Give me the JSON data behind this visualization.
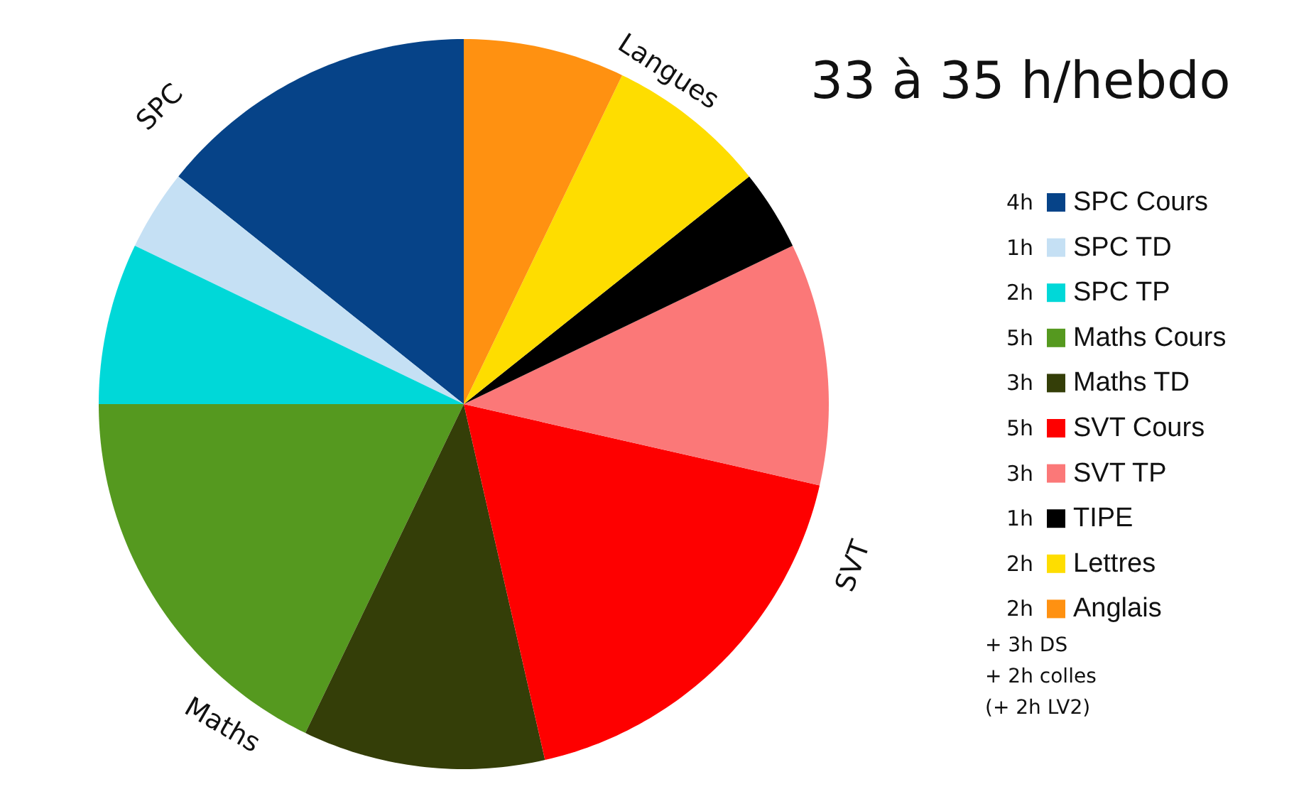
{
  "chart_data": {
    "type": "pie",
    "title": "33 à 35 h/hebdo",
    "categories": [
      "SPC Cours",
      "SPC TD",
      "SPC TP",
      "Maths Cours",
      "Maths TD",
      "SVT Cours",
      "SVT TP",
      "TIPE",
      "Lettres",
      "Anglais"
    ],
    "values": [
      4,
      1,
      2,
      5,
      3,
      5,
      3,
      1,
      2,
      2
    ],
    "colors": [
      "#064388",
      "#c5e0f4",
      "#00d8d8",
      "#55991f",
      "#343e08",
      "#fe0000",
      "#fb7878",
      "#000000",
      "#fedd00",
      "#ff9111"
    ],
    "value_labels": [
      "4h",
      "1h",
      "2h",
      "5h",
      "3h",
      "5h",
      "3h",
      "1h",
      "2h",
      "2h"
    ],
    "legend": "right",
    "annotations": [
      "SPC",
      "Langues",
      "SVT",
      "Maths",
      "+ 3h DS",
      "+ 2h colles",
      "(+ 2h LV2)"
    ]
  }
}
